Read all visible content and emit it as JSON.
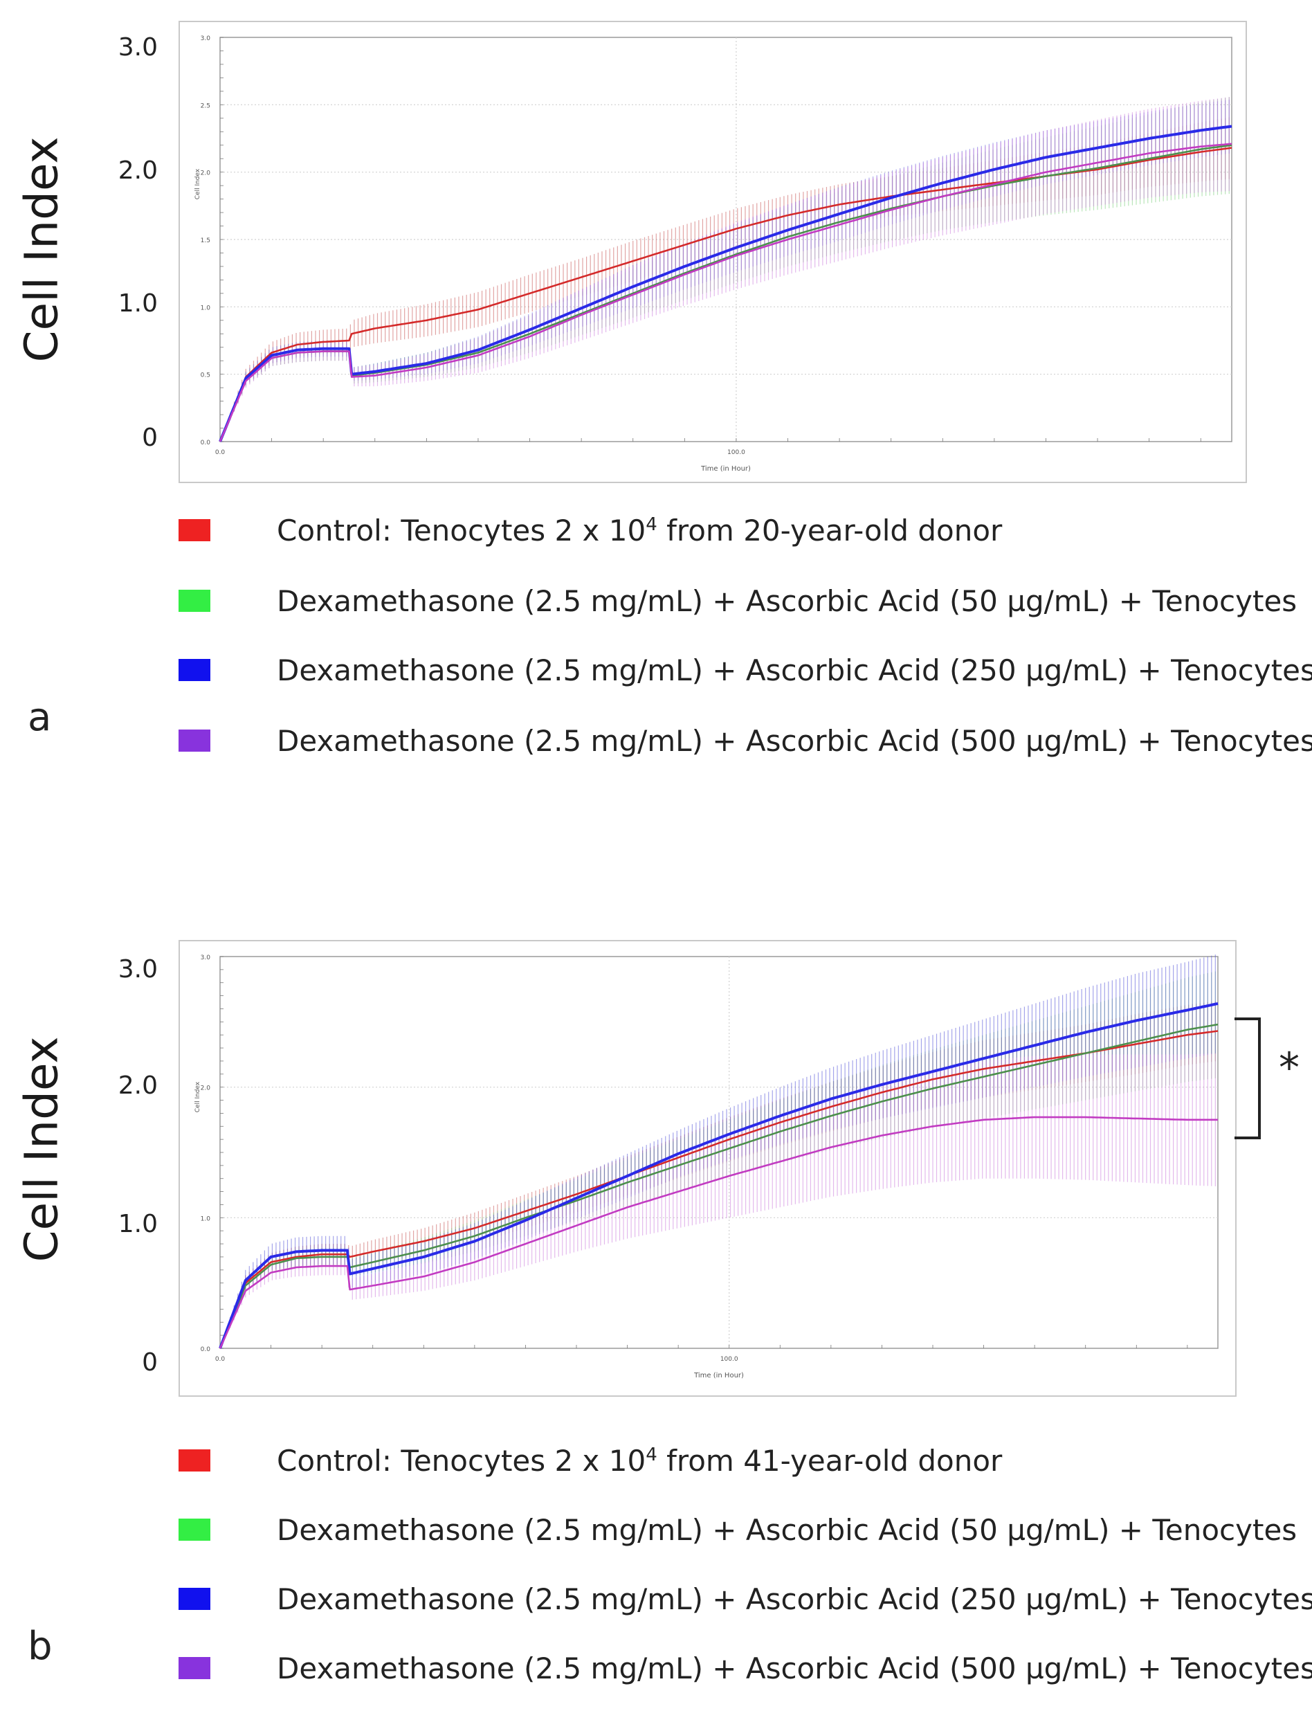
{
  "panels": [
    {
      "id": "a",
      "letter": "a",
      "ylabel": "Cell Index",
      "y_ticks": [
        "3.0",
        "2.0",
        "1.0",
        "0"
      ],
      "inner_y_ticks": [
        "3.0",
        "2.5",
        "2.0",
        "1.5",
        "1.0",
        "0.5",
        "0.0"
      ],
      "inner_ylabel": "Cell Index",
      "inner_x_ticks": [
        "0.0",
        "100.0"
      ],
      "inner_xlabel": "Time (in Hour)",
      "legend": [
        {
          "pre": "Control: Tenocytes 2 x 10",
          "sup": "4",
          "post": " from 20-year-old donor",
          "color": "#ee2222"
        },
        {
          "pre": "Dexamethasone (2.5 mg/mL) + Ascorbic Acid (50 µg/mL) + Tenocytes",
          "sup": "",
          "post": "",
          "color": "#33ee44"
        },
        {
          "pre": "Dexamethasone (2.5 mg/mL) + Ascorbic Acid (250 µg/mL) + Tenocytes",
          "sup": "",
          "post": "",
          "color": "#1111ee"
        },
        {
          "pre": "Dexamethasone (2.5 mg/mL) + Ascorbic Acid (500 µg/mL) + Tenocytes",
          "sup": "",
          "post": "",
          "color": "#8833dd"
        }
      ]
    },
    {
      "id": "b",
      "letter": "b",
      "ylabel": "Cell Index",
      "y_ticks": [
        "3.0",
        "2.0",
        "1.0",
        "0"
      ],
      "inner_y_ticks": [
        "3.0",
        "2.0",
        "1.0",
        "0.0"
      ],
      "inner_ylabel": "Cell Index",
      "inner_x_ticks": [
        "0.0",
        "100.0"
      ],
      "inner_xlabel": "Time (in Hour)",
      "significance": "*",
      "legend": [
        {
          "pre": "Control: Tenocytes 2 x 10",
          "sup": "4",
          "post": " from 41-year-old donor",
          "color": "#ee2222"
        },
        {
          "pre": "Dexamethasone (2.5 mg/mL) + Ascorbic Acid (50 µg/mL) + Tenocytes",
          "sup": "",
          "post": "",
          "color": "#33ee44"
        },
        {
          "pre": "Dexamethasone (2.5 mg/mL) + Ascorbic Acid (250 µg/mL) + Tenocytes",
          "sup": "",
          "post": "",
          "color": "#1111ee"
        },
        {
          "pre": "Dexamethasone (2.5 mg/mL) + Ascorbic Acid (500 µg/mL) + Tenocytes",
          "sup": "",
          "post": "",
          "color": "#8833dd"
        }
      ]
    }
  ],
  "chart_data": [
    {
      "panel": "a",
      "type": "line",
      "title": "",
      "xlabel": "Time (in Hour)",
      "ylabel": "Cell Index",
      "xlim": [
        0,
        196
      ],
      "ylim": [
        0,
        3.0
      ],
      "grid": true,
      "legend_position": "below",
      "x": [
        0,
        5,
        10,
        15,
        20,
        25,
        25.5,
        30,
        40,
        50,
        60,
        70,
        80,
        90,
        100,
        110,
        120,
        130,
        140,
        150,
        160,
        170,
        180,
        190,
        196
      ],
      "series": [
        {
          "name": "Control: Tenocytes 2 x 10^4 from 20-year-old donor",
          "color": "#d42a2a",
          "error_color": "#c85a5a",
          "values": [
            0,
            0.48,
            0.66,
            0.72,
            0.74,
            0.75,
            0.8,
            0.84,
            0.9,
            0.98,
            1.1,
            1.22,
            1.34,
            1.46,
            1.58,
            1.68,
            1.76,
            1.82,
            1.87,
            1.92,
            1.97,
            2.02,
            2.09,
            2.15,
            2.18
          ],
          "errors": [
            0,
            0.06,
            0.08,
            0.09,
            0.09,
            0.09,
            0.1,
            0.11,
            0.12,
            0.13,
            0.14,
            0.14,
            0.15,
            0.15,
            0.15,
            0.15,
            0.15,
            0.15,
            0.16,
            0.17,
            0.18,
            0.19,
            0.2,
            0.22,
            0.23
          ]
        },
        {
          "name": "Dexamethasone (2.5 mg/mL) + Ascorbic Acid (50 µg/mL) + Tenocytes",
          "color": "#4c8f4c",
          "error_color": "#7fcf7f",
          "values": [
            0,
            0.46,
            0.62,
            0.66,
            0.67,
            0.67,
            0.49,
            0.51,
            0.57,
            0.66,
            0.8,
            0.95,
            1.1,
            1.25,
            1.39,
            1.52,
            1.63,
            1.73,
            1.82,
            1.9,
            1.97,
            2.03,
            2.1,
            2.17,
            2.2
          ],
          "errors": [
            0,
            0.05,
            0.06,
            0.07,
            0.07,
            0.07,
            0.06,
            0.07,
            0.09,
            0.11,
            0.14,
            0.16,
            0.18,
            0.2,
            0.21,
            0.22,
            0.23,
            0.24,
            0.25,
            0.27,
            0.29,
            0.31,
            0.33,
            0.35,
            0.36
          ]
        },
        {
          "name": "Dexamethasone (2.5 mg/mL) + Ascorbic Acid (250 µg/mL) + Tenocytes",
          "color": "#2a2ae8",
          "error_color": "#6b6be0",
          "values": [
            0,
            0.47,
            0.64,
            0.68,
            0.69,
            0.69,
            0.5,
            0.52,
            0.58,
            0.68,
            0.83,
            0.99,
            1.15,
            1.3,
            1.44,
            1.57,
            1.69,
            1.81,
            1.92,
            2.02,
            2.11,
            2.18,
            2.25,
            2.31,
            2.34
          ],
          "errors": [
            0,
            0.05,
            0.06,
            0.06,
            0.06,
            0.06,
            0.05,
            0.06,
            0.08,
            0.1,
            0.12,
            0.14,
            0.16,
            0.17,
            0.18,
            0.19,
            0.2,
            0.2,
            0.2,
            0.2,
            0.2,
            0.2,
            0.2,
            0.2,
            0.2
          ]
        },
        {
          "name": "Dexamethasone (2.5 mg/mL) + Ascorbic Acid (500 µg/mL) + Tenocytes",
          "color": "#c23bc2",
          "error_color": "#cc7fdd",
          "values": [
            0,
            0.45,
            0.62,
            0.66,
            0.67,
            0.67,
            0.48,
            0.49,
            0.55,
            0.64,
            0.78,
            0.94,
            1.09,
            1.24,
            1.38,
            1.5,
            1.61,
            1.72,
            1.82,
            1.91,
            2.0,
            2.07,
            2.14,
            2.19,
            2.21
          ],
          "errors": [
            0,
            0.05,
            0.06,
            0.07,
            0.07,
            0.07,
            0.07,
            0.08,
            0.1,
            0.13,
            0.16,
            0.19,
            0.21,
            0.23,
            0.25,
            0.26,
            0.27,
            0.28,
            0.29,
            0.3,
            0.31,
            0.32,
            0.33,
            0.34,
            0.35
          ]
        }
      ]
    },
    {
      "panel": "b",
      "type": "line",
      "title": "",
      "xlabel": "Time (in Hour)",
      "ylabel": "Cell Index",
      "xlim": [
        0,
        196
      ],
      "ylim": [
        0,
        3.0
      ],
      "grid": true,
      "legend_position": "below",
      "x": [
        0,
        5,
        10,
        15,
        20,
        25,
        25.5,
        30,
        40,
        50,
        60,
        70,
        80,
        90,
        100,
        110,
        120,
        130,
        140,
        150,
        160,
        170,
        180,
        190,
        196
      ],
      "series": [
        {
          "name": "Control: Tenocytes 2 x 10^4 from 41-year-old donor",
          "color": "#d42a2a",
          "error_color": "#c85a5a",
          "values": [
            0,
            0.5,
            0.66,
            0.7,
            0.72,
            0.72,
            0.7,
            0.74,
            0.82,
            0.92,
            1.05,
            1.18,
            1.32,
            1.46,
            1.6,
            1.73,
            1.85,
            1.96,
            2.06,
            2.14,
            2.2,
            2.26,
            2.33,
            2.4,
            2.43
          ],
          "errors": [
            0,
            0.06,
            0.07,
            0.08,
            0.08,
            0.08,
            0.08,
            0.09,
            0.1,
            0.12,
            0.13,
            0.14,
            0.15,
            0.16,
            0.17,
            0.18,
            0.19,
            0.2,
            0.21,
            0.22,
            0.22,
            0.22,
            0.23,
            0.23,
            0.23
          ]
        },
        {
          "name": "Dexamethasone (2.5 mg/mL) + Ascorbic Acid (50 µg/mL) + Tenocytes",
          "color": "#4c8f4c",
          "error_color": "#7fcf7f",
          "values": [
            0,
            0.48,
            0.64,
            0.69,
            0.7,
            0.7,
            0.62,
            0.66,
            0.75,
            0.86,
            1.0,
            1.13,
            1.27,
            1.4,
            1.53,
            1.66,
            1.78,
            1.89,
            1.99,
            2.08,
            2.17,
            2.26,
            2.35,
            2.44,
            2.48
          ],
          "errors": [
            0,
            0.05,
            0.06,
            0.07,
            0.07,
            0.07,
            0.07,
            0.08,
            0.1,
            0.12,
            0.14,
            0.16,
            0.18,
            0.2,
            0.22,
            0.24,
            0.26,
            0.28,
            0.3,
            0.32,
            0.34,
            0.36,
            0.38,
            0.4,
            0.41
          ]
        },
        {
          "name": "Dexamethasone (2.5 mg/mL) + Ascorbic Acid (250 µg/mL) + Tenocytes",
          "color": "#2a2ae8",
          "error_color": "#5a5ad8",
          "values": [
            0,
            0.52,
            0.7,
            0.74,
            0.75,
            0.75,
            0.57,
            0.61,
            0.7,
            0.82,
            0.98,
            1.15,
            1.32,
            1.49,
            1.64,
            1.78,
            1.91,
            2.02,
            2.12,
            2.22,
            2.32,
            2.42,
            2.51,
            2.59,
            2.64
          ],
          "errors": [
            0,
            0.08,
            0.1,
            0.11,
            0.11,
            0.11,
            0.11,
            0.12,
            0.13,
            0.14,
            0.15,
            0.16,
            0.17,
            0.18,
            0.2,
            0.22,
            0.24,
            0.26,
            0.28,
            0.3,
            0.32,
            0.34,
            0.36,
            0.37,
            0.38
          ]
        },
        {
          "name": "Dexamethasone (2.5 mg/mL) + Ascorbic Acid (500 µg/mL) + Tenocytes",
          "color": "#c23bc2",
          "error_color": "#cc7fdd",
          "values": [
            0,
            0.44,
            0.58,
            0.62,
            0.63,
            0.63,
            0.45,
            0.48,
            0.55,
            0.66,
            0.8,
            0.94,
            1.08,
            1.2,
            1.32,
            1.43,
            1.54,
            1.63,
            1.7,
            1.75,
            1.77,
            1.77,
            1.76,
            1.75,
            1.75
          ],
          "errors": [
            0,
            0.05,
            0.06,
            0.07,
            0.07,
            0.07,
            0.08,
            0.09,
            0.11,
            0.14,
            0.17,
            0.2,
            0.24,
            0.28,
            0.32,
            0.35,
            0.38,
            0.41,
            0.43,
            0.45,
            0.47,
            0.48,
            0.49,
            0.5,
            0.51
          ]
        }
      ]
    }
  ]
}
